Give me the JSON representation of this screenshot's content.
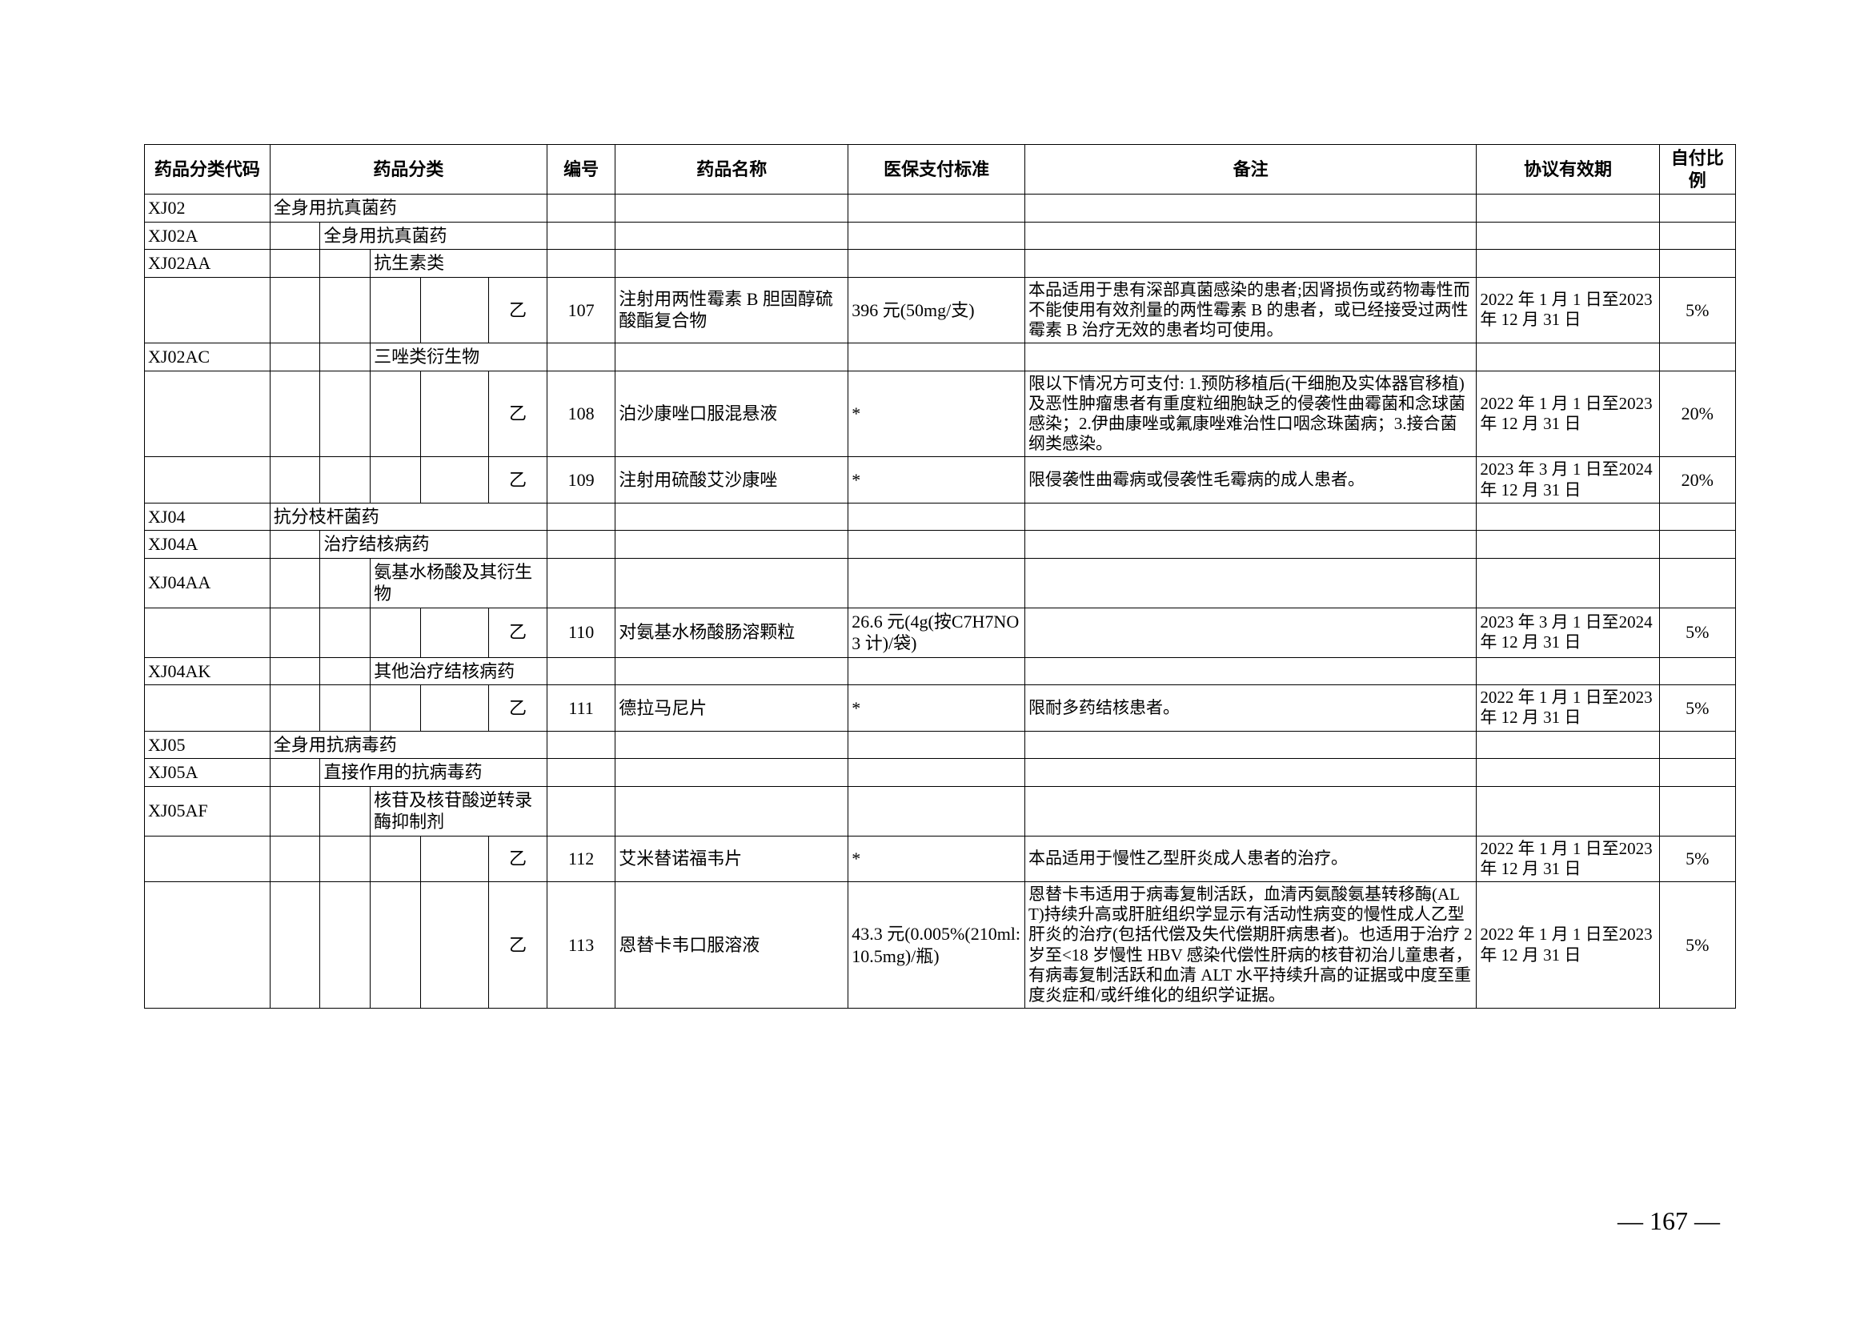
{
  "page_number": "— 167 —",
  "headers": {
    "code": "药品分类代码",
    "category": "药品分类",
    "number": "编号",
    "name": "药品名称",
    "pay": "医保支付标准",
    "note": "备注",
    "date": "协议有效期",
    "ratio": "自付比例"
  },
  "rows": [
    {
      "type": "cat",
      "code": "XJ02",
      "c1": "全身用抗真菌药"
    },
    {
      "type": "cat",
      "code": "XJ02A",
      "c2": "全身用抗真菌药"
    },
    {
      "type": "cat",
      "code": "XJ02AA",
      "c3": "抗生素类"
    },
    {
      "type": "drug",
      "lvl": "乙",
      "num": "107",
      "name": "注射用两性霉素 B 胆固醇硫酸酯复合物",
      "pay": "396 元(50mg/支)",
      "note": "本品适用于患有深部真菌感染的患者;因肾损伤或药物毒性而不能使用有效剂量的两性霉素 B 的患者，或已经接受过两性霉素 B 治疗无效的患者均可使用。",
      "date": "2022 年 1 月 1 日至2023 年 12 月 31 日",
      "ratio": "5%"
    },
    {
      "type": "cat",
      "code": "XJ02AC",
      "c3": "三唑类衍生物"
    },
    {
      "type": "drug",
      "lvl": "乙",
      "num": "108",
      "name": "泊沙康唑口服混悬液",
      "pay": "*",
      "note": "限以下情况方可支付: 1.预防移植后(干细胞及实体器官移植)及恶性肿瘤患者有重度粒细胞缺乏的侵袭性曲霉菌和念球菌感染；2.伊曲康唑或氟康唑难治性口咽念珠菌病；3.接合菌纲类感染。",
      "date": "2022 年 1 月 1 日至2023 年 12 月 31 日",
      "ratio": "20%"
    },
    {
      "type": "drug",
      "lvl": "乙",
      "num": "109",
      "name": "注射用硫酸艾沙康唑",
      "pay": "*",
      "note": "限侵袭性曲霉病或侵袭性毛霉病的成人患者。",
      "date": "2023 年 3 月 1 日至2024 年 12 月 31 日",
      "ratio": "20%"
    },
    {
      "type": "cat",
      "code": "XJ04",
      "c1": "抗分枝杆菌药"
    },
    {
      "type": "cat",
      "code": "XJ04A",
      "c2": "治疗结核病药"
    },
    {
      "type": "cat",
      "code": "XJ04AA",
      "c3": "氨基水杨酸及其衍生物"
    },
    {
      "type": "drug",
      "lvl": "乙",
      "num": "110",
      "name": "对氨基水杨酸肠溶颗粒",
      "pay": "26.6 元(4g(按C7H7NO3 计)/袋)",
      "note": "",
      "date": "2023 年 3 月 1 日至2024 年 12 月 31 日",
      "ratio": "5%"
    },
    {
      "type": "cat",
      "code": "XJ04AK",
      "c3": "其他治疗结核病药"
    },
    {
      "type": "drug",
      "lvl": "乙",
      "num": "111",
      "name": "德拉马尼片",
      "pay": "*",
      "note": "限耐多药结核患者。",
      "date": "2022 年 1 月 1 日至2023 年 12 月 31 日",
      "ratio": "5%"
    },
    {
      "type": "cat",
      "code": "XJ05",
      "c1": "全身用抗病毒药"
    },
    {
      "type": "cat",
      "code": "XJ05A",
      "c2": "直接作用的抗病毒药"
    },
    {
      "type": "cat",
      "code": "XJ05AF",
      "c3": "核苷及核苷酸逆转录酶抑制剂"
    },
    {
      "type": "drug",
      "lvl": "乙",
      "num": "112",
      "name": "艾米替诺福韦片",
      "pay": "*",
      "note": "本品适用于慢性乙型肝炎成人患者的治疗。",
      "date": "2022 年 1 月 1 日至2023 年 12 月 31 日",
      "ratio": "5%"
    },
    {
      "type": "drug",
      "lvl": "乙",
      "num": "113",
      "name": "恩替卡韦口服溶液",
      "pay": "43.3 元(0.005%(210ml:10.5mg)/瓶)",
      "note": "恩替卡韦适用于病毒复制活跃，血清丙氨酸氨基转移酶(ALT)持续升高或肝脏组织学显示有活动性病变的慢性成人乙型肝炎的治疗(包括代偿及失代偿期肝病患者)。也适用于治疗 2 岁至<18 岁慢性 HBV 感染代偿性肝病的核苷初治儿童患者，有病毒复制活跃和血清 ALT 水平持续升高的证据或中度至重度炎症和/或纤维化的组织学证据。",
      "date": "2022 年 1 月 1 日至2023 年 12 月 31 日",
      "ratio": "5%"
    }
  ]
}
